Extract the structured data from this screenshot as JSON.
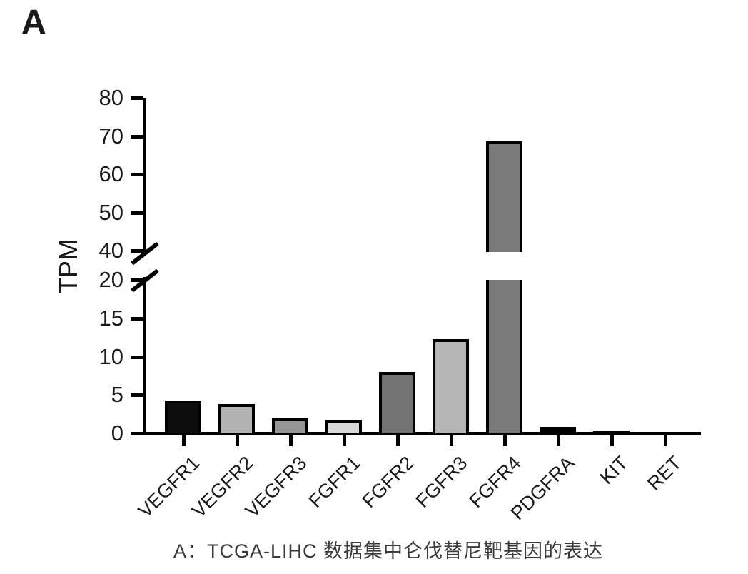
{
  "panel_label": "A",
  "caption": "A：TCGA-LIHC 数据集中仑伐替尼靶基因的表达",
  "chart_data": {
    "type": "bar",
    "title": "",
    "xlabel": "",
    "ylabel": "TPM",
    "categories": [
      "VEGFR1",
      "VEGFR2",
      "VEGFR3",
      "FGFR1",
      "FGFR2",
      "FGFR3",
      "FGFR4",
      "PDGFRA",
      "KIT",
      "RET"
    ],
    "values": [
      4.3,
      3.8,
      2.0,
      1.8,
      8.0,
      12.3,
      68.6,
      0.8,
      0.3,
      0.05
    ],
    "bar_colors": [
      "#0d0d0d",
      "#b3b3b3",
      "#969696",
      "#d9d9d9",
      "#737373",
      "#b5b5b5",
      "#7a7a7a",
      "#0d0d0d",
      "#0d0d0d",
      "#0d0d0d"
    ],
    "bar_border_color": "#000000",
    "axis_color": "#000000",
    "grid": false,
    "legend": null,
    "axis_break": {
      "lower_max": 20,
      "upper_min": 40
    },
    "ylim_lower": [
      0,
      20
    ],
    "ylim_upper": [
      40,
      80
    ],
    "lower_ticks": [
      0,
      5,
      10,
      15,
      20
    ],
    "upper_ticks": [
      40,
      50,
      60,
      70,
      80
    ]
  }
}
